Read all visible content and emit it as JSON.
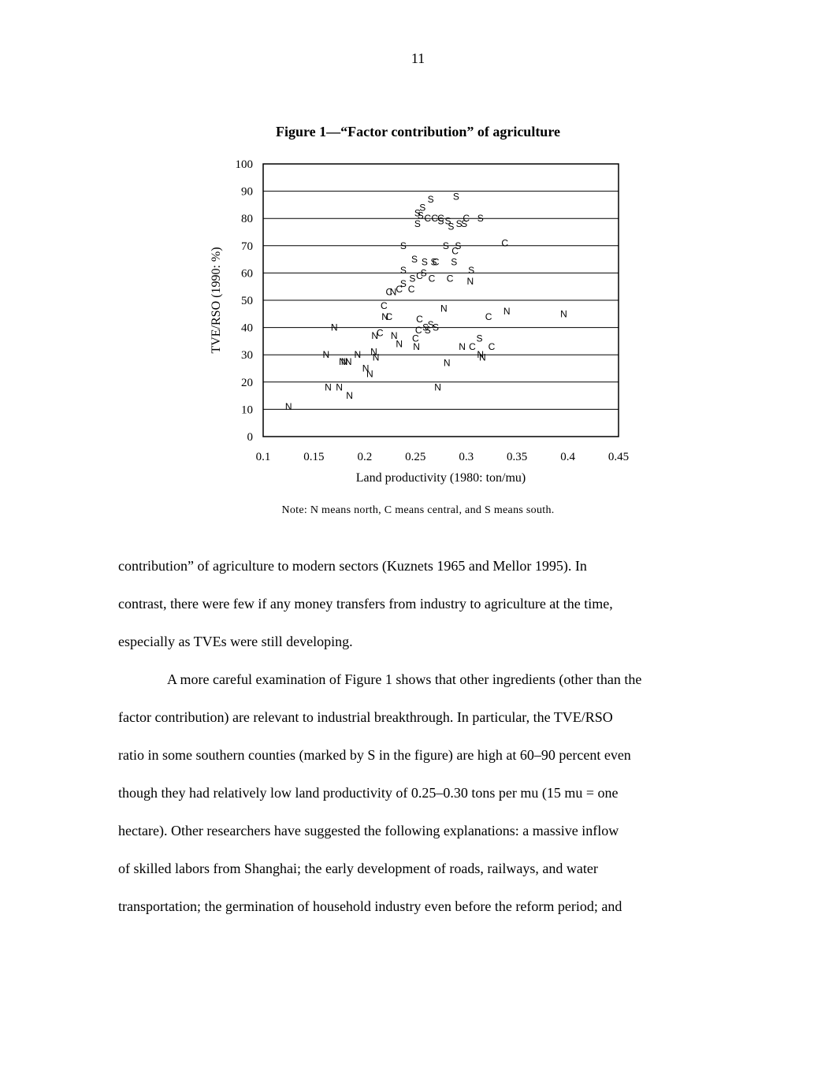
{
  "page_number": "11",
  "figure": {
    "title": "Figure 1—“Factor contribution” of agriculture",
    "note": "Note:  N means north, C means central, and S means south."
  },
  "chart_data": {
    "type": "scatter",
    "title": "Figure 1—“Factor contribution” of agriculture",
    "xlabel": "Land productivity (1980: ton/mu)",
    "ylabel": "TVE/RSO (1990: %)",
    "xlim": [
      0.1,
      0.45
    ],
    "ylim": [
      0,
      100
    ],
    "x_ticks": [
      "0.1",
      "0.15",
      "0.2",
      "0.25",
      "0.3",
      "0.35",
      "0.4",
      "0.45"
    ],
    "y_ticks": [
      "0",
      "10",
      "20",
      "30",
      "40",
      "50",
      "60",
      "70",
      "80",
      "90",
      "100"
    ],
    "horizontal_grid": true,
    "marker_labels": {
      "N": "north",
      "C": "central",
      "S": "south"
    },
    "series": [
      {
        "name": "N",
        "points": [
          [
            0.125,
            11
          ],
          [
            0.17,
            40
          ],
          [
            0.162,
            30
          ],
          [
            0.178,
            27.5
          ],
          [
            0.18,
            27.5
          ],
          [
            0.184,
            27.5
          ],
          [
            0.193,
            30
          ],
          [
            0.209,
            31
          ],
          [
            0.211,
            29
          ],
          [
            0.201,
            25
          ],
          [
            0.205,
            23
          ],
          [
            0.164,
            18
          ],
          [
            0.175,
            18
          ],
          [
            0.185,
            15
          ],
          [
            0.21,
            37
          ],
          [
            0.229,
            37
          ],
          [
            0.234,
            34
          ],
          [
            0.251,
            33
          ],
          [
            0.22,
            44
          ],
          [
            0.228,
            53
          ],
          [
            0.278,
            47
          ],
          [
            0.296,
            33
          ],
          [
            0.304,
            57
          ],
          [
            0.281,
            27
          ],
          [
            0.272,
            18
          ],
          [
            0.314,
            30
          ],
          [
            0.316,
            29
          ],
          [
            0.34,
            46
          ],
          [
            0.396,
            45
          ]
        ]
      },
      {
        "name": "C",
        "points": [
          [
            0.219,
            48
          ],
          [
            0.224,
            44
          ],
          [
            0.215,
            38
          ],
          [
            0.224,
            53
          ],
          [
            0.234,
            54
          ],
          [
            0.246,
            54
          ],
          [
            0.254,
            59
          ],
          [
            0.266,
            58
          ],
          [
            0.275,
            80
          ],
          [
            0.269,
            80
          ],
          [
            0.262,
            80
          ],
          [
            0.3,
            80
          ],
          [
            0.338,
            71
          ],
          [
            0.289,
            68
          ],
          [
            0.27,
            64
          ],
          [
            0.284,
            58
          ],
          [
            0.254,
            43
          ],
          [
            0.253,
            39
          ],
          [
            0.25,
            36
          ],
          [
            0.306,
            33
          ],
          [
            0.325,
            33
          ],
          [
            0.322,
            44
          ]
        ]
      },
      {
        "name": "S",
        "points": [
          [
            0.265,
            87
          ],
          [
            0.29,
            88
          ],
          [
            0.257,
            84
          ],
          [
            0.252,
            82
          ],
          [
            0.255,
            81
          ],
          [
            0.252,
            78
          ],
          [
            0.275,
            79
          ],
          [
            0.282,
            79
          ],
          [
            0.293,
            78
          ],
          [
            0.285,
            77
          ],
          [
            0.314,
            80
          ],
          [
            0.298,
            78
          ],
          [
            0.238,
            70
          ],
          [
            0.28,
            70
          ],
          [
            0.292,
            70
          ],
          [
            0.249,
            65
          ],
          [
            0.259,
            64
          ],
          [
            0.268,
            64
          ],
          [
            0.288,
            64
          ],
          [
            0.238,
            61
          ],
          [
            0.258,
            60
          ],
          [
            0.305,
            61
          ],
          [
            0.238,
            56
          ],
          [
            0.247,
            58
          ],
          [
            0.262,
            39
          ],
          [
            0.27,
            40
          ],
          [
            0.265,
            41
          ],
          [
            0.26,
            40
          ],
          [
            0.313,
            36
          ]
        ]
      }
    ]
  },
  "body": {
    "paragraphs": [
      {
        "indent": false,
        "lines": [
          "contribution” of agriculture to modern sectors (Kuznets 1965 and Mellor 1995).  In",
          "contrast, there were few if any money transfers from industry to agriculture at the time,",
          "especially as TVEs were still developing."
        ]
      },
      {
        "indent": true,
        "lines": [
          "A more careful examination of Figure 1 shows that other ingredients (other than the",
          "factor contribution) are relevant to industrial breakthrough.  In particular, the TVE/RSO",
          "ratio in some southern counties (marked by S in the figure) are high at 60–90 percent even",
          "though they had relatively low land productivity of 0.25–0.30 tons per mu (15 mu = one",
          "hectare).  Other researchers have suggested the following explanations: a massive inflow",
          "of skilled labors from Shanghai; the early development of roads, railways, and water",
          "transportation; the germination of household industry even before the reform period; and"
        ]
      }
    ]
  }
}
